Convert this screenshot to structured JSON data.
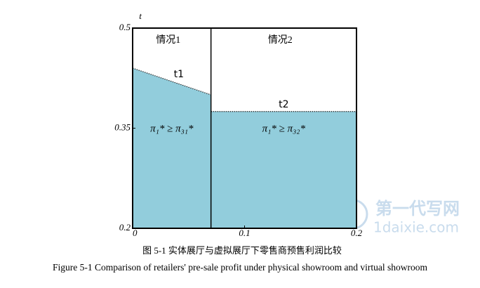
{
  "chart_data": {
    "type": "area",
    "ylabel": "t",
    "xlim": [
      0,
      0.2
    ],
    "ylim": [
      0.2,
      0.5
    ],
    "xticks": [
      0,
      0.1,
      0.2
    ],
    "yticks": [
      0.2,
      0.35,
      0.5
    ],
    "fill_color": "#92cddc",
    "series": [
      {
        "name": "t1",
        "x": [
          0,
          0.07
        ],
        "values": [
          0.44,
          0.4
        ]
      },
      {
        "name": "t2",
        "x": [
          0.07,
          0.2
        ],
        "values": [
          0.375,
          0.375
        ]
      }
    ],
    "region_labels": [
      "情况1",
      "情况2"
    ],
    "inequalities": [
      "π₁* ≥ π₃₁*",
      "π₁* ≥ π₃₂*"
    ],
    "caption_cn": "图 5-1 实体展厅与虚拟展厅下零售商预售利润比较",
    "caption_en": "Figure 5-1 Comparison of retailers' pre-sale profit under physical showroom and virtual showroom"
  },
  "watermark": {
    "brand": "第一代写网",
    "site": "1daixie.com"
  }
}
